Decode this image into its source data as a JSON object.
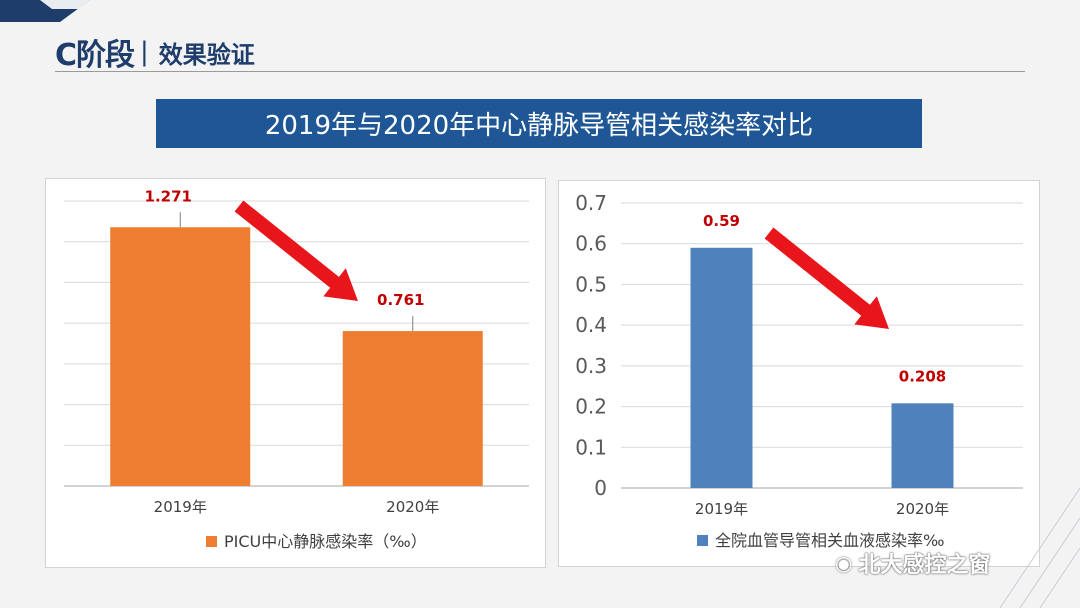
{
  "header": {
    "stage": "C阶段",
    "separator": "|",
    "section_title": "效果验证"
  },
  "banner": {
    "title": "2019年与2020年中心静脉导管相关感染率对比"
  },
  "colors": {
    "orange": "#ED7D31",
    "blue": "#4F81BD",
    "arrow": "#E8151B",
    "label_red": "#C00000"
  },
  "chart_data": [
    {
      "type": "bar",
      "categories": [
        "2019年",
        "2020年"
      ],
      "series": [
        {
          "name": "PICU中心静脉感染率（‰）",
          "values": [
            1.271,
            0.761
          ]
        }
      ],
      "data_labels": [
        "1.271",
        "0.761"
      ],
      "ylim": [
        0,
        1.4
      ],
      "y_ticks_visible": false,
      "grid": true,
      "legend": "bottom",
      "annotation": "decreasing-arrow"
    },
    {
      "type": "bar",
      "categories": [
        "2019年",
        "2020年"
      ],
      "series": [
        {
          "name": "全院血管导管相关血液感染率‰",
          "values": [
            0.59,
            0.208
          ]
        }
      ],
      "data_labels": [
        "0.59",
        "0.208"
      ],
      "ylim": [
        0,
        0.7
      ],
      "y_tick_labels": [
        "0.7",
        "0.6",
        "0.5",
        "0.4",
        "0.3",
        "0.2",
        "0.1",
        "0"
      ],
      "grid": true,
      "legend": "bottom",
      "annotation": "decreasing-arrow"
    }
  ],
  "watermark": {
    "text": "北大感控之窗",
    "icon": "wechat-icon"
  }
}
